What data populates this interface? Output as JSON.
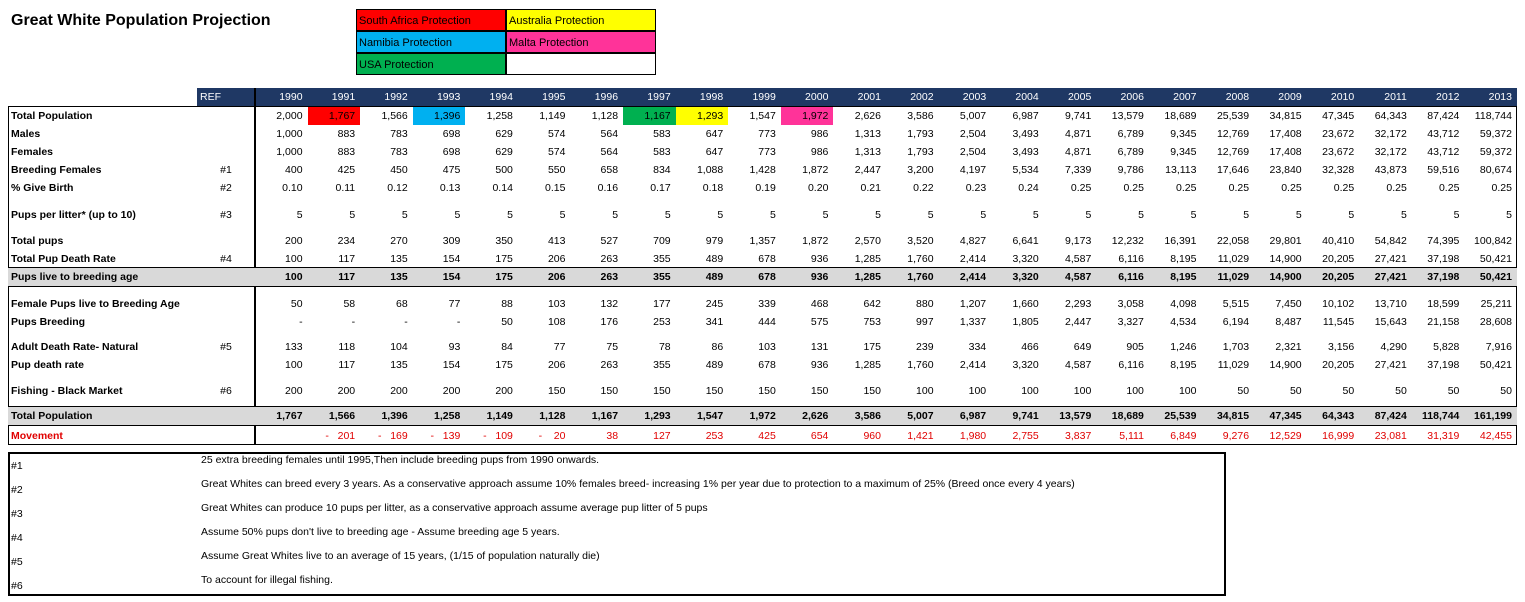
{
  "title": "Great White Population Projection",
  "legend": [
    {
      "label": "South Africa Protection",
      "color": "#ff0000"
    },
    {
      "label": "Australia Protection",
      "color": "#ffff00"
    },
    {
      "label": "Namibia Protection",
      "color": "#00b0f0"
    },
    {
      "label": "Malta Protection",
      "color": "#ff3399"
    },
    {
      "label": "USA Protection",
      "color": "#00b050"
    }
  ],
  "table": {
    "ref_header": "REF",
    "years": [
      1990,
      1991,
      1992,
      1993,
      1994,
      1995,
      1996,
      1997,
      1998,
      1999,
      2000,
      2001,
      2002,
      2003,
      2004,
      2005,
      2006,
      2007,
      2008,
      2009,
      2010,
      2011,
      2012,
      2013
    ],
    "rows": [
      {
        "label": "Total Population",
        "values": [
          "2,000",
          "1,767",
          "1,566",
          "1,396",
          "1,258",
          "1,149",
          "1,128",
          "1,167",
          "1,293",
          "1,547",
          "1,972",
          "2,626",
          "3,586",
          "5,007",
          "6,987",
          "9,741",
          "13,579",
          "18,689",
          "25,539",
          "34,815",
          "47,345",
          "64,343",
          "87,424",
          "118,744"
        ]
      },
      {
        "label": "Males",
        "values": [
          "1,000",
          "883",
          "783",
          "698",
          "629",
          "574",
          "564",
          "583",
          "647",
          "773",
          "986",
          "1,313",
          "1,793",
          "2,504",
          "3,493",
          "4,871",
          "6,789",
          "9,345",
          "12,769",
          "17,408",
          "23,672",
          "32,172",
          "43,712",
          "59,372"
        ]
      },
      {
        "label": "Females",
        "values": [
          "1,000",
          "883",
          "783",
          "698",
          "629",
          "574",
          "564",
          "583",
          "647",
          "773",
          "986",
          "1,313",
          "1,793",
          "2,504",
          "3,493",
          "4,871",
          "6,789",
          "9,345",
          "12,769",
          "17,408",
          "23,672",
          "32,172",
          "43,712",
          "59,372"
        ]
      },
      {
        "label": "Breeding Females",
        "ref": "#1",
        "values": [
          "400",
          "425",
          "450",
          "475",
          "500",
          "550",
          "658",
          "834",
          "1,088",
          "1,428",
          "1,872",
          "2,447",
          "3,200",
          "4,197",
          "5,534",
          "7,339",
          "9,786",
          "13,113",
          "17,646",
          "23,840",
          "32,328",
          "43,873",
          "59,516",
          "80,674"
        ]
      },
      {
        "label": "% Give Birth",
        "ref": "#2",
        "values": [
          "0.10",
          "0.11",
          "0.12",
          "0.13",
          "0.14",
          "0.15",
          "0.16",
          "0.17",
          "0.18",
          "0.19",
          "0.20",
          "0.21",
          "0.22",
          "0.23",
          "0.24",
          "0.25",
          "0.25",
          "0.25",
          "0.25",
          "0.25",
          "0.25",
          "0.25",
          "0.25",
          "0.25"
        ]
      },
      {
        "label": "Pups per litter* (up to 10)",
        "ref": "#3",
        "values": [
          "5",
          "5",
          "5",
          "5",
          "5",
          "5",
          "5",
          "5",
          "5",
          "5",
          "5",
          "5",
          "5",
          "5",
          "5",
          "5",
          "5",
          "5",
          "5",
          "5",
          "5",
          "5",
          "5",
          "5"
        ]
      },
      {
        "label": "Total pups",
        "values": [
          "200",
          "234",
          "270",
          "309",
          "350",
          "413",
          "527",
          "709",
          "979",
          "1,357",
          "1,872",
          "2,570",
          "3,520",
          "4,827",
          "6,641",
          "9,173",
          "12,232",
          "16,391",
          "22,058",
          "29,801",
          "40,410",
          "54,842",
          "74,395",
          "100,842"
        ]
      },
      {
        "label": "Total Pup Death Rate",
        "ref": "#4",
        "values": [
          "100",
          "117",
          "135",
          "154",
          "175",
          "206",
          "263",
          "355",
          "489",
          "678",
          "936",
          "1,285",
          "1,760",
          "2,414",
          "3,320",
          "4,587",
          "6,116",
          "8,195",
          "11,029",
          "14,900",
          "20,205",
          "27,421",
          "37,198",
          "50,421"
        ]
      },
      {
        "label": "Pups live to breeding age",
        "values": [
          "100",
          "117",
          "135",
          "154",
          "175",
          "206",
          "263",
          "355",
          "489",
          "678",
          "936",
          "1,285",
          "1,760",
          "2,414",
          "3,320",
          "4,587",
          "6,116",
          "8,195",
          "11,029",
          "14,900",
          "20,205",
          "27,421",
          "37,198",
          "50,421"
        ]
      },
      {
        "label": "Female Pups live to Breeding Age",
        "values": [
          "50",
          "58",
          "68",
          "77",
          "88",
          "103",
          "132",
          "177",
          "245",
          "339",
          "468",
          "642",
          "880",
          "1,207",
          "1,660",
          "2,293",
          "3,058",
          "4,098",
          "5,515",
          "7,450",
          "10,102",
          "13,710",
          "18,599",
          "25,211"
        ]
      },
      {
        "label": "Pups Breeding",
        "values": [
          "-",
          "-",
          "-",
          "-",
          "50",
          "108",
          "176",
          "253",
          "341",
          "444",
          "575",
          "753",
          "997",
          "1,337",
          "1,805",
          "2,447",
          "3,327",
          "4,534",
          "6,194",
          "8,487",
          "11,545",
          "15,643",
          "21,158",
          "28,608"
        ]
      },
      {
        "label": "Adult Death Rate- Natural",
        "ref": "#5",
        "values": [
          "133",
          "118",
          "104",
          "93",
          "84",
          "77",
          "75",
          "78",
          "86",
          "103",
          "131",
          "175",
          "239",
          "334",
          "466",
          "649",
          "905",
          "1,246",
          "1,703",
          "2,321",
          "3,156",
          "4,290",
          "5,828",
          "7,916"
        ]
      },
      {
        "label": "Pup death rate",
        "values": [
          "100",
          "117",
          "135",
          "154",
          "175",
          "206",
          "263",
          "355",
          "489",
          "678",
          "936",
          "1,285",
          "1,760",
          "2,414",
          "3,320",
          "4,587",
          "6,116",
          "8,195",
          "11,029",
          "14,900",
          "20,205",
          "27,421",
          "37,198",
          "50,421"
        ]
      },
      {
        "label": "Fishing - Black Market",
        "ref": "#6",
        "values": [
          "200",
          "200",
          "200",
          "200",
          "200",
          "150",
          "150",
          "150",
          "150",
          "150",
          "150",
          "150",
          "100",
          "100",
          "100",
          "100",
          "100",
          "100",
          "50",
          "50",
          "50",
          "50",
          "50",
          "50"
        ]
      },
      {
        "label": "Total Population",
        "values": [
          "1,767",
          "1,566",
          "1,396",
          "1,258",
          "1,149",
          "1,128",
          "1,167",
          "1,293",
          "1,547",
          "1,972",
          "2,626",
          "3,586",
          "5,007",
          "6,987",
          "9,741",
          "13,579",
          "18,689",
          "25,539",
          "34,815",
          "47,345",
          "64,343",
          "87,424",
          "118,744",
          "161,199"
        ]
      },
      {
        "label": "Movement",
        "values": [
          null,
          "-   201",
          "-   169",
          "-   139",
          "-   109",
          "-    20",
          "38",
          "127",
          "253",
          "425",
          "654",
          "960",
          "1,421",
          "1,980",
          "2,755",
          "3,837",
          "5,111",
          "6,849",
          "9,276",
          "12,529",
          "16,999",
          "23,081",
          "31,319",
          "42,455"
        ]
      }
    ]
  },
  "notes": [
    {
      "ref": "#1",
      "text": "25 extra breeding females until 1995,Then include breeding pups from 1990 onwards."
    },
    {
      "ref": "#2",
      "text": "Great Whites can breed every 3 years. As a conservative approach assume 10% females breed- increasing 1% per year due to protection to a maximum of 25% (Breed once every 4 years)"
    },
    {
      "ref": "#3",
      "text": "Great Whites can produce 10 pups per litter, as a conservative approach assume average pup litter of 5 pups"
    },
    {
      "ref": "#4",
      "text": "Assume 50% pups don't live to breeding age - Assume breeding age 5 years."
    },
    {
      "ref": "#5",
      "text": "Assume Great Whites live to an average of 15 years, (1/15 of population naturally die)"
    },
    {
      "ref": "#6",
      "text": "To account for illegal fishing."
    }
  ]
}
